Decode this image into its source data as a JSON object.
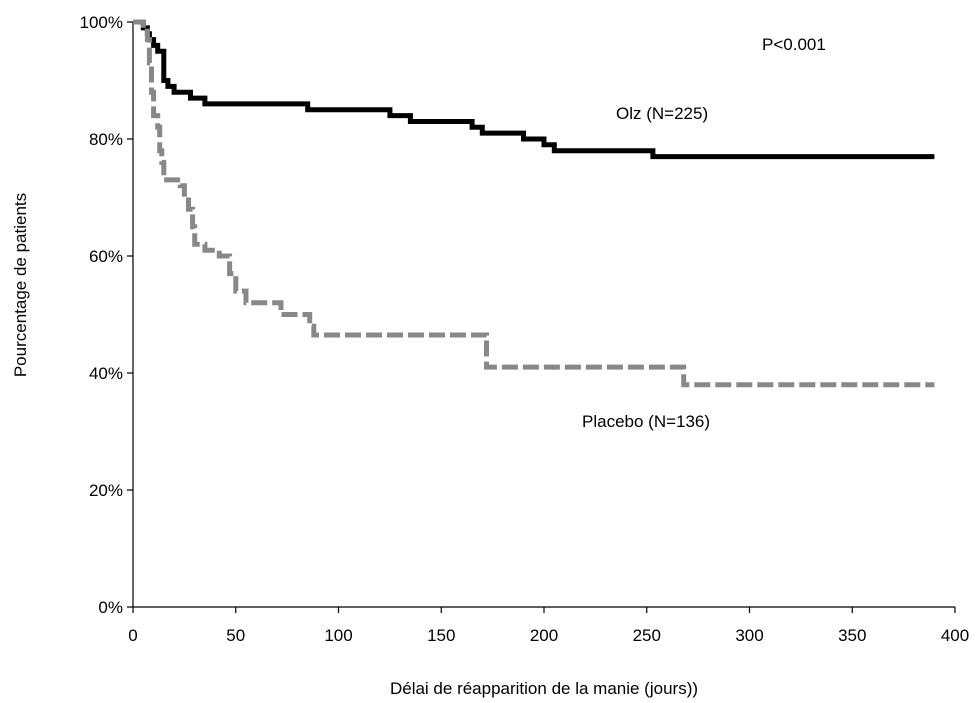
{
  "chart_data": {
    "type": "line",
    "title": "",
    "xlabel": "Délai de réapparition de la manie (jours))",
    "ylabel": "Pourcentage de patients",
    "xlim": [
      0,
      400
    ],
    "ylim": [
      0,
      100
    ],
    "x_ticks": [
      "0",
      "50",
      "100",
      "150",
      "200",
      "250",
      "300",
      "350",
      "400"
    ],
    "y_ticks": [
      "0%",
      "20%",
      "40%",
      "60%",
      "80%",
      "100%"
    ],
    "x_tick_values": [
      0,
      50,
      100,
      150,
      200,
      250,
      300,
      350,
      400
    ],
    "y_tick_values": [
      0,
      20,
      40,
      60,
      80,
      100
    ],
    "grid": false,
    "annotations": {
      "pvalue": "P<0.001",
      "olz_label": "Olz (N=225)",
      "placebo_label": "Placebo (N=136)"
    },
    "series": [
      {
        "name": "Olz (N=225)",
        "color": "#000000",
        "style": "solid",
        "step": true,
        "x": [
          0,
          5,
          7,
          8,
          10,
          12,
          15,
          17,
          20,
          28,
          35,
          85,
          120,
          125,
          135,
          165,
          170,
          190,
          200,
          205,
          250,
          253,
          390
        ],
        "y": [
          100,
          99,
          98,
          97,
          96,
          95,
          90,
          89,
          88,
          87,
          86,
          85,
          85,
          84,
          83,
          82,
          81,
          80,
          79,
          78,
          78,
          77,
          77
        ]
      },
      {
        "name": "Placebo (N=136)",
        "color": "#888888",
        "style": "dashed",
        "step": true,
        "x": [
          0,
          5,
          7,
          8,
          9,
          10,
          12,
          13,
          14,
          15,
          23,
          25,
          27,
          29,
          30,
          35,
          42,
          47,
          50,
          55,
          72,
          86,
          88,
          170,
          172,
          250,
          268,
          390
        ],
        "y": [
          100,
          99,
          97,
          93,
          88,
          84,
          82,
          78,
          76,
          73,
          72,
          70,
          68,
          65,
          62,
          61,
          60,
          57,
          54,
          52,
          50,
          48,
          46.5,
          46.5,
          41,
          41,
          38,
          38
        ]
      }
    ]
  }
}
